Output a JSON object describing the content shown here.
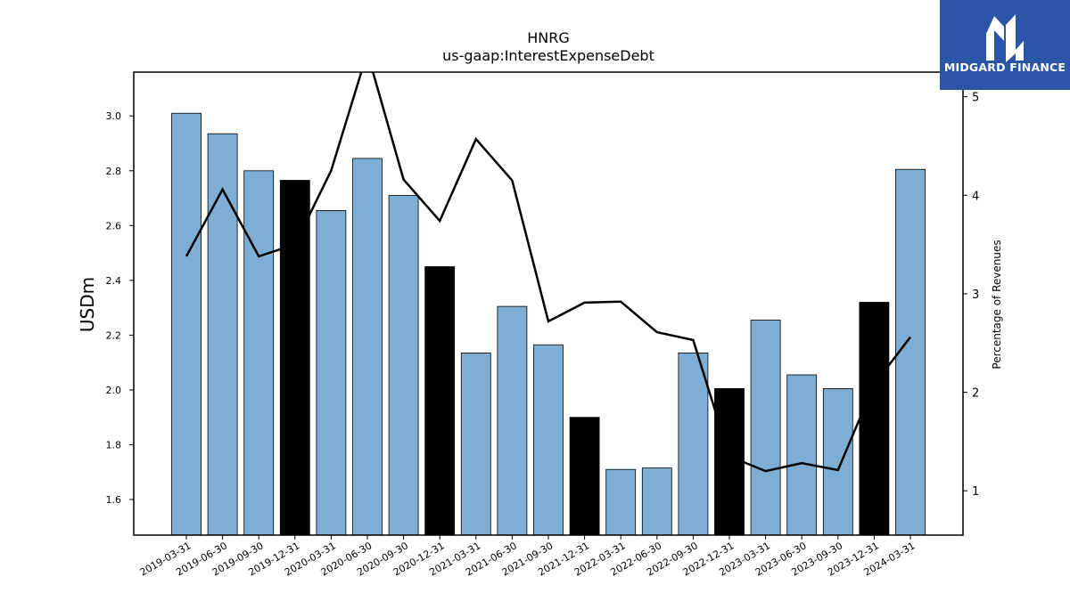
{
  "chart_data": {
    "type": "bar",
    "title": "HNRG",
    "subtitle": "us-gaap:InterestExpenseDebt",
    "ylabel": "USDm",
    "y2label": "Percentage of Revenues",
    "categories": [
      "2019-03-31",
      "2019-06-30",
      "2019-09-30",
      "2019-12-31",
      "2020-03-31",
      "2020-06-30",
      "2020-09-30",
      "2020-12-31",
      "2021-03-31",
      "2021-06-30",
      "2021-09-30",
      "2021-12-31",
      "2022-03-31",
      "2022-06-30",
      "2022-09-30",
      "2022-12-31",
      "2023-03-31",
      "2023-06-30",
      "2023-09-30",
      "2023-12-31",
      "2024-03-31"
    ],
    "series": [
      {
        "values": [
          3.01,
          2.935,
          2.8,
          2.765,
          2.655,
          2.845,
          2.71,
          2.45,
          2.135,
          2.305,
          2.165,
          1.9,
          1.71,
          1.715,
          2.135,
          2.005,
          2.255,
          2.055,
          2.005,
          2.32,
          2.805
        ]
      },
      {
        "values": [
          3.38,
          4.06,
          3.38,
          3.5,
          4.25,
          5.45,
          4.16,
          3.74,
          4.57,
          4.15,
          2.72,
          2.91,
          2.92,
          2.61,
          2.53,
          1.35,
          1.2,
          1.28,
          1.21,
          2.08,
          2.56
        ]
      }
    ],
    "bar_colors": [
      "#7eaed3",
      "#7eaed3",
      "#7eaed3",
      "#000000",
      "#7eaed3",
      "#7eaed3",
      "#7eaed3",
      "#000000",
      "#7eaed3",
      "#7eaed3",
      "#7eaed3",
      "#000000",
      "#7eaed3",
      "#7eaed3",
      "#7eaed3",
      "#000000",
      "#7eaed3",
      "#7eaed3",
      "#7eaed3",
      "#000000",
      "#7eaed3"
    ],
    "line_color": "#000000",
    "ylim": [
      1.47,
      3.16
    ],
    "y2lim": [
      0.55,
      5.25
    ],
    "yticks": [
      "1.6",
      "1.8",
      "2.0",
      "2.2",
      "2.4",
      "2.6",
      "2.8",
      "3.0"
    ],
    "y2ticks": [
      "1",
      "2",
      "3",
      "4",
      "5"
    ],
    "grid": false
  },
  "logo": {
    "text": "MIDGARD FINANCE",
    "color": "#2b56a8"
  }
}
